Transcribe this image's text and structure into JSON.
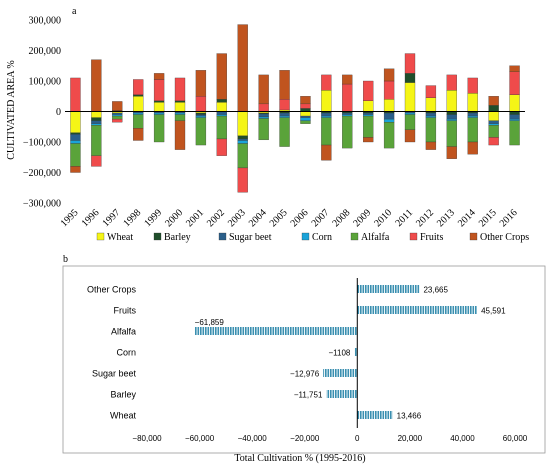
{
  "colors": {
    "Wheat": "#f5f516",
    "Barley": "#1f4e2b",
    "Sugar beet": "#2b5f8a",
    "Corn": "#1aa3d9",
    "Alfalfa": "#5aa33a",
    "Fruits": "#ef4b4b",
    "Other Crops": "#c0541f",
    "hbar": "#3a8fb0"
  },
  "chart_data": [
    {
      "type": "bar",
      "stacked": true,
      "panel_label": "a",
      "ylabel": "CULTIVATED AREA %",
      "ylim": [
        -300000,
        300000
      ],
      "y_ticks": [
        "300,000",
        "200,000",
        "100,000",
        "0",
        "−100,000",
        "−200,000",
        "−300,000"
      ],
      "y_tick_values": [
        300000,
        200000,
        100000,
        0,
        -100000,
        -200000,
        -300000
      ],
      "grid": false,
      "legend_position": "bottom",
      "categories": [
        "1995",
        "1996",
        "1997",
        "1998",
        "1999",
        "2000",
        "2001",
        "2002",
        "2003",
        "2004",
        "2005",
        "2006",
        "2007",
        "2008",
        "2009",
        "2010",
        "2011",
        "2012",
        "2013",
        "2014",
        "2015",
        "2016"
      ],
      "series": [
        {
          "name": "Wheat",
          "values": [
            -70000,
            -20000,
            -5000,
            50000,
            30000,
            30000,
            -5000,
            30000,
            -80000,
            -5000,
            5000,
            -15000,
            70000,
            0,
            35000,
            40000,
            95000,
            45000,
            70000,
            60000,
            -30000,
            55000
          ]
        },
        {
          "name": "Barley",
          "values": [
            -5000,
            -10000,
            3000,
            5000,
            5000,
            5000,
            -5000,
            10000,
            -10000,
            -3000,
            -5000,
            10000,
            -5000,
            -5000,
            -5000,
            -5000,
            30000,
            -5000,
            -10000,
            -5000,
            20000,
            -10000
          ]
        },
        {
          "name": "Sugar beet",
          "values": [
            -20000,
            -10000,
            -5000,
            -5000,
            -5000,
            -5000,
            -5000,
            -10000,
            -5000,
            -10000,
            -10000,
            -5000,
            -10000,
            -5000,
            -5000,
            -20000,
            -5000,
            -10000,
            -15000,
            -10000,
            -10000,
            -15000
          ]
        },
        {
          "name": "Corn",
          "values": [
            -10000,
            -5000,
            -5000,
            -5000,
            -5000,
            -5000,
            -5000,
            -5000,
            -10000,
            -5000,
            -5000,
            -10000,
            -5000,
            -5000,
            -5000,
            -10000,
            -5000,
            -5000,
            -5000,
            -5000,
            -5000,
            -5000
          ]
        },
        {
          "name": "Alfalfa",
          "values": [
            -75000,
            -100000,
            -10000,
            -45000,
            -90000,
            -20000,
            -90000,
            -75000,
            -80000,
            -70000,
            -95000,
            -10000,
            -90000,
            -105000,
            -70000,
            -85000,
            -50000,
            -80000,
            -85000,
            -80000,
            -40000,
            -80000
          ]
        },
        {
          "name": "Fruits",
          "values": [
            110000,
            -35000,
            -10000,
            50000,
            70000,
            75000,
            50000,
            -55000,
            -80000,
            25000,
            35000,
            15000,
            50000,
            90000,
            65000,
            60000,
            65000,
            40000,
            50000,
            50000,
            -25000,
            75000
          ]
        },
        {
          "name": "Other Crops",
          "values": [
            -20000,
            170000,
            30000,
            -40000,
            20000,
            -95000,
            85000,
            150000,
            285000,
            95000,
            95000,
            25000,
            -50000,
            30000,
            -15000,
            40000,
            -40000,
            -25000,
            -40000,
            -40000,
            30000,
            20000
          ]
        }
      ]
    },
    {
      "type": "bar",
      "orientation": "horizontal",
      "panel_label": "b",
      "xlabel": "Total Cultivation % (1995-2016)",
      "xlim": [
        -80000,
        60000
      ],
      "x_ticks": [
        "−80,000",
        "−60,000",
        "−40,000",
        "−20,000",
        "0",
        "20,000",
        "40,000",
        "60,000"
      ],
      "x_tick_values": [
        -80000,
        -60000,
        -40000,
        -20000,
        0,
        20000,
        40000,
        60000
      ],
      "categories": [
        "Other Crops",
        "Fruits",
        "Alfalfa",
        "Corn",
        "Sugar beet",
        "Barley",
        "Wheat"
      ],
      "values": [
        23665,
        45591,
        -61859,
        -1108,
        -12976,
        -11751,
        13466
      ],
      "value_labels": [
        "23,665",
        "45,591",
        "−61,859",
        "−1108",
        "−12,976",
        "−11,751",
        "13,466"
      ]
    }
  ]
}
